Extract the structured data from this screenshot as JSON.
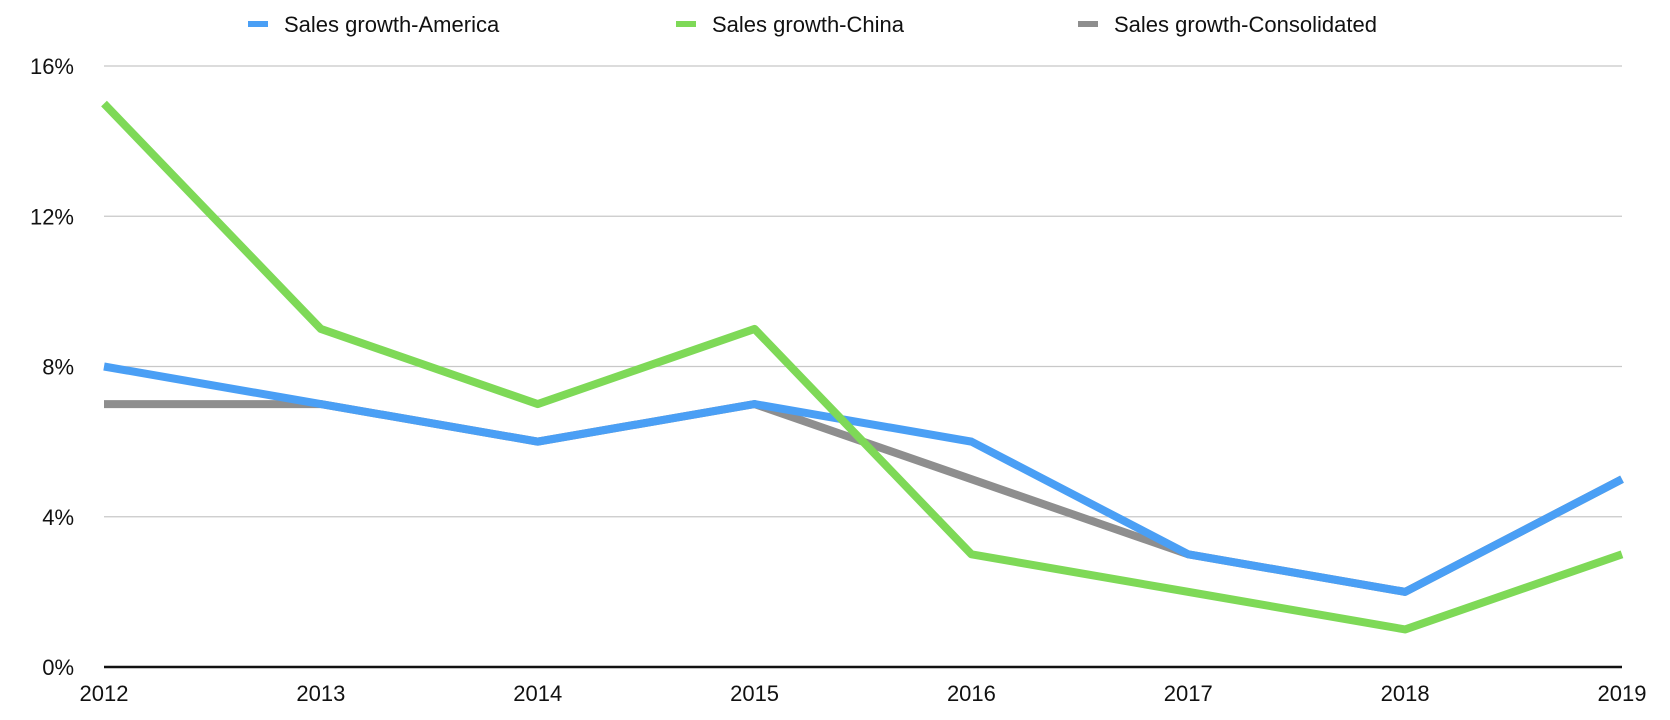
{
  "chart_data": {
    "type": "line",
    "title": "",
    "xlabel": "",
    "ylabel": "",
    "categories": [
      "2012",
      "2013",
      "2014",
      "2015",
      "2016",
      "2017",
      "2018",
      "2019"
    ],
    "ylim": [
      0,
      16
    ],
    "y_ticks": [
      {
        "value": 0,
        "label": "0%"
      },
      {
        "value": 4,
        "label": "4%"
      },
      {
        "value": 8,
        "label": "8%"
      },
      {
        "value": 12,
        "label": "12%"
      },
      {
        "value": 16,
        "label": "16%"
      }
    ],
    "grid": true,
    "legend_position": "top",
    "series": [
      {
        "name": "Sales growth-America",
        "color": "#4a9ff5",
        "values": [
          8,
          7,
          6,
          7,
          6,
          3,
          2,
          5
        ]
      },
      {
        "name": "Sales growth-China",
        "color": "#7ed957",
        "values": [
          15,
          9,
          7,
          9,
          3,
          2,
          1,
          3
        ]
      },
      {
        "name": "Sales growth-Consolidated",
        "color": "#8e8e8e",
        "values": [
          7,
          7,
          6,
          7,
          5,
          3,
          2,
          5
        ]
      }
    ]
  }
}
